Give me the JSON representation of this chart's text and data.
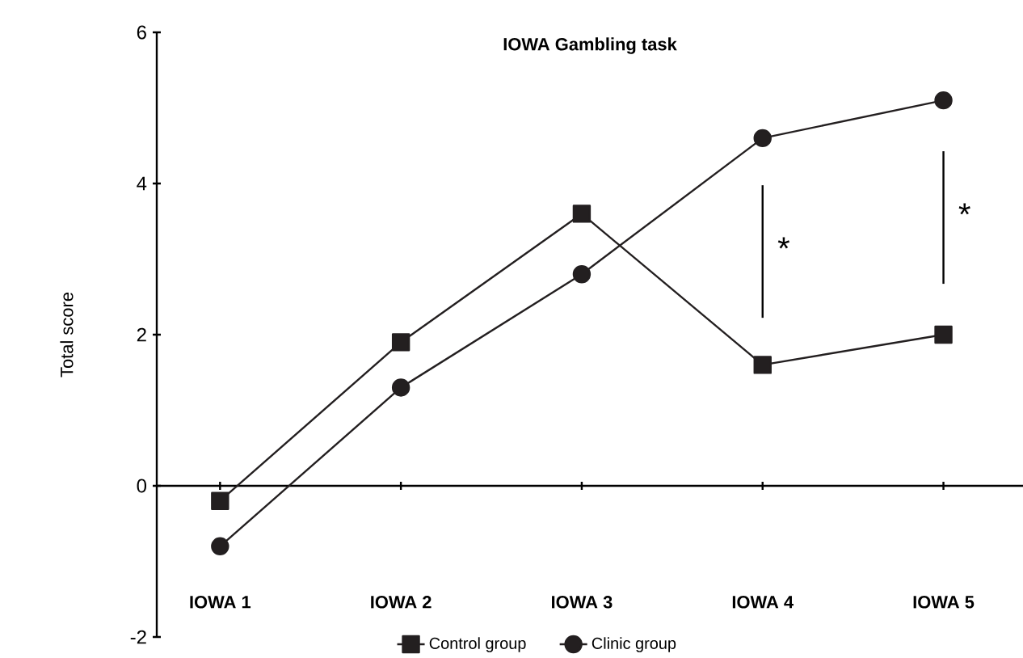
{
  "chart_data": {
    "type": "line",
    "title": "IOWA Gambling task",
    "ylabel": "Total score",
    "categories": [
      "IOWA 1",
      "IOWA 2",
      "IOWA 3",
      "IOWA 4",
      "IOWA 5"
    ],
    "series": [
      {
        "name": "Control group",
        "color": "#231f20",
        "marker": "square",
        "values": [
          -0.2,
          1.9,
          3.6,
          1.6,
          2.0
        ]
      },
      {
        "name": "Clinic group",
        "color": "#231f20",
        "marker": "circle",
        "values": [
          -0.8,
          1.3,
          2.8,
          4.6,
          5.1
        ]
      }
    ],
    "ylim": [
      -2,
      6
    ],
    "yticks": [
      -2,
      0,
      2,
      4,
      6
    ],
    "legend": "bottom",
    "line_style": "solid",
    "annotations": [
      "*",
      "*"
    ]
  }
}
